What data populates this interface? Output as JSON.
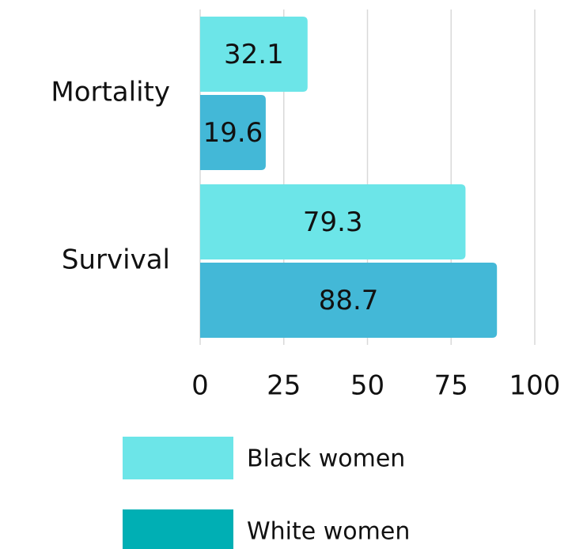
{
  "chart_data": {
    "type": "bar",
    "orientation": "horizontal",
    "categories": [
      "Mortality",
      "Survival"
    ],
    "series": [
      {
        "name": "Black women",
        "color": "#6ce5e8",
        "legend_color": "#6ce5e8",
        "values": [
          32.1,
          79.3
        ]
      },
      {
        "name": "White women",
        "color": "#43b8d7",
        "legend_color": "#00afb4",
        "values": [
          19.6,
          88.7
        ]
      }
    ],
    "xlim": [
      0,
      100
    ],
    "xticks": [
      0,
      25,
      50,
      75,
      100
    ],
    "grid": true
  }
}
